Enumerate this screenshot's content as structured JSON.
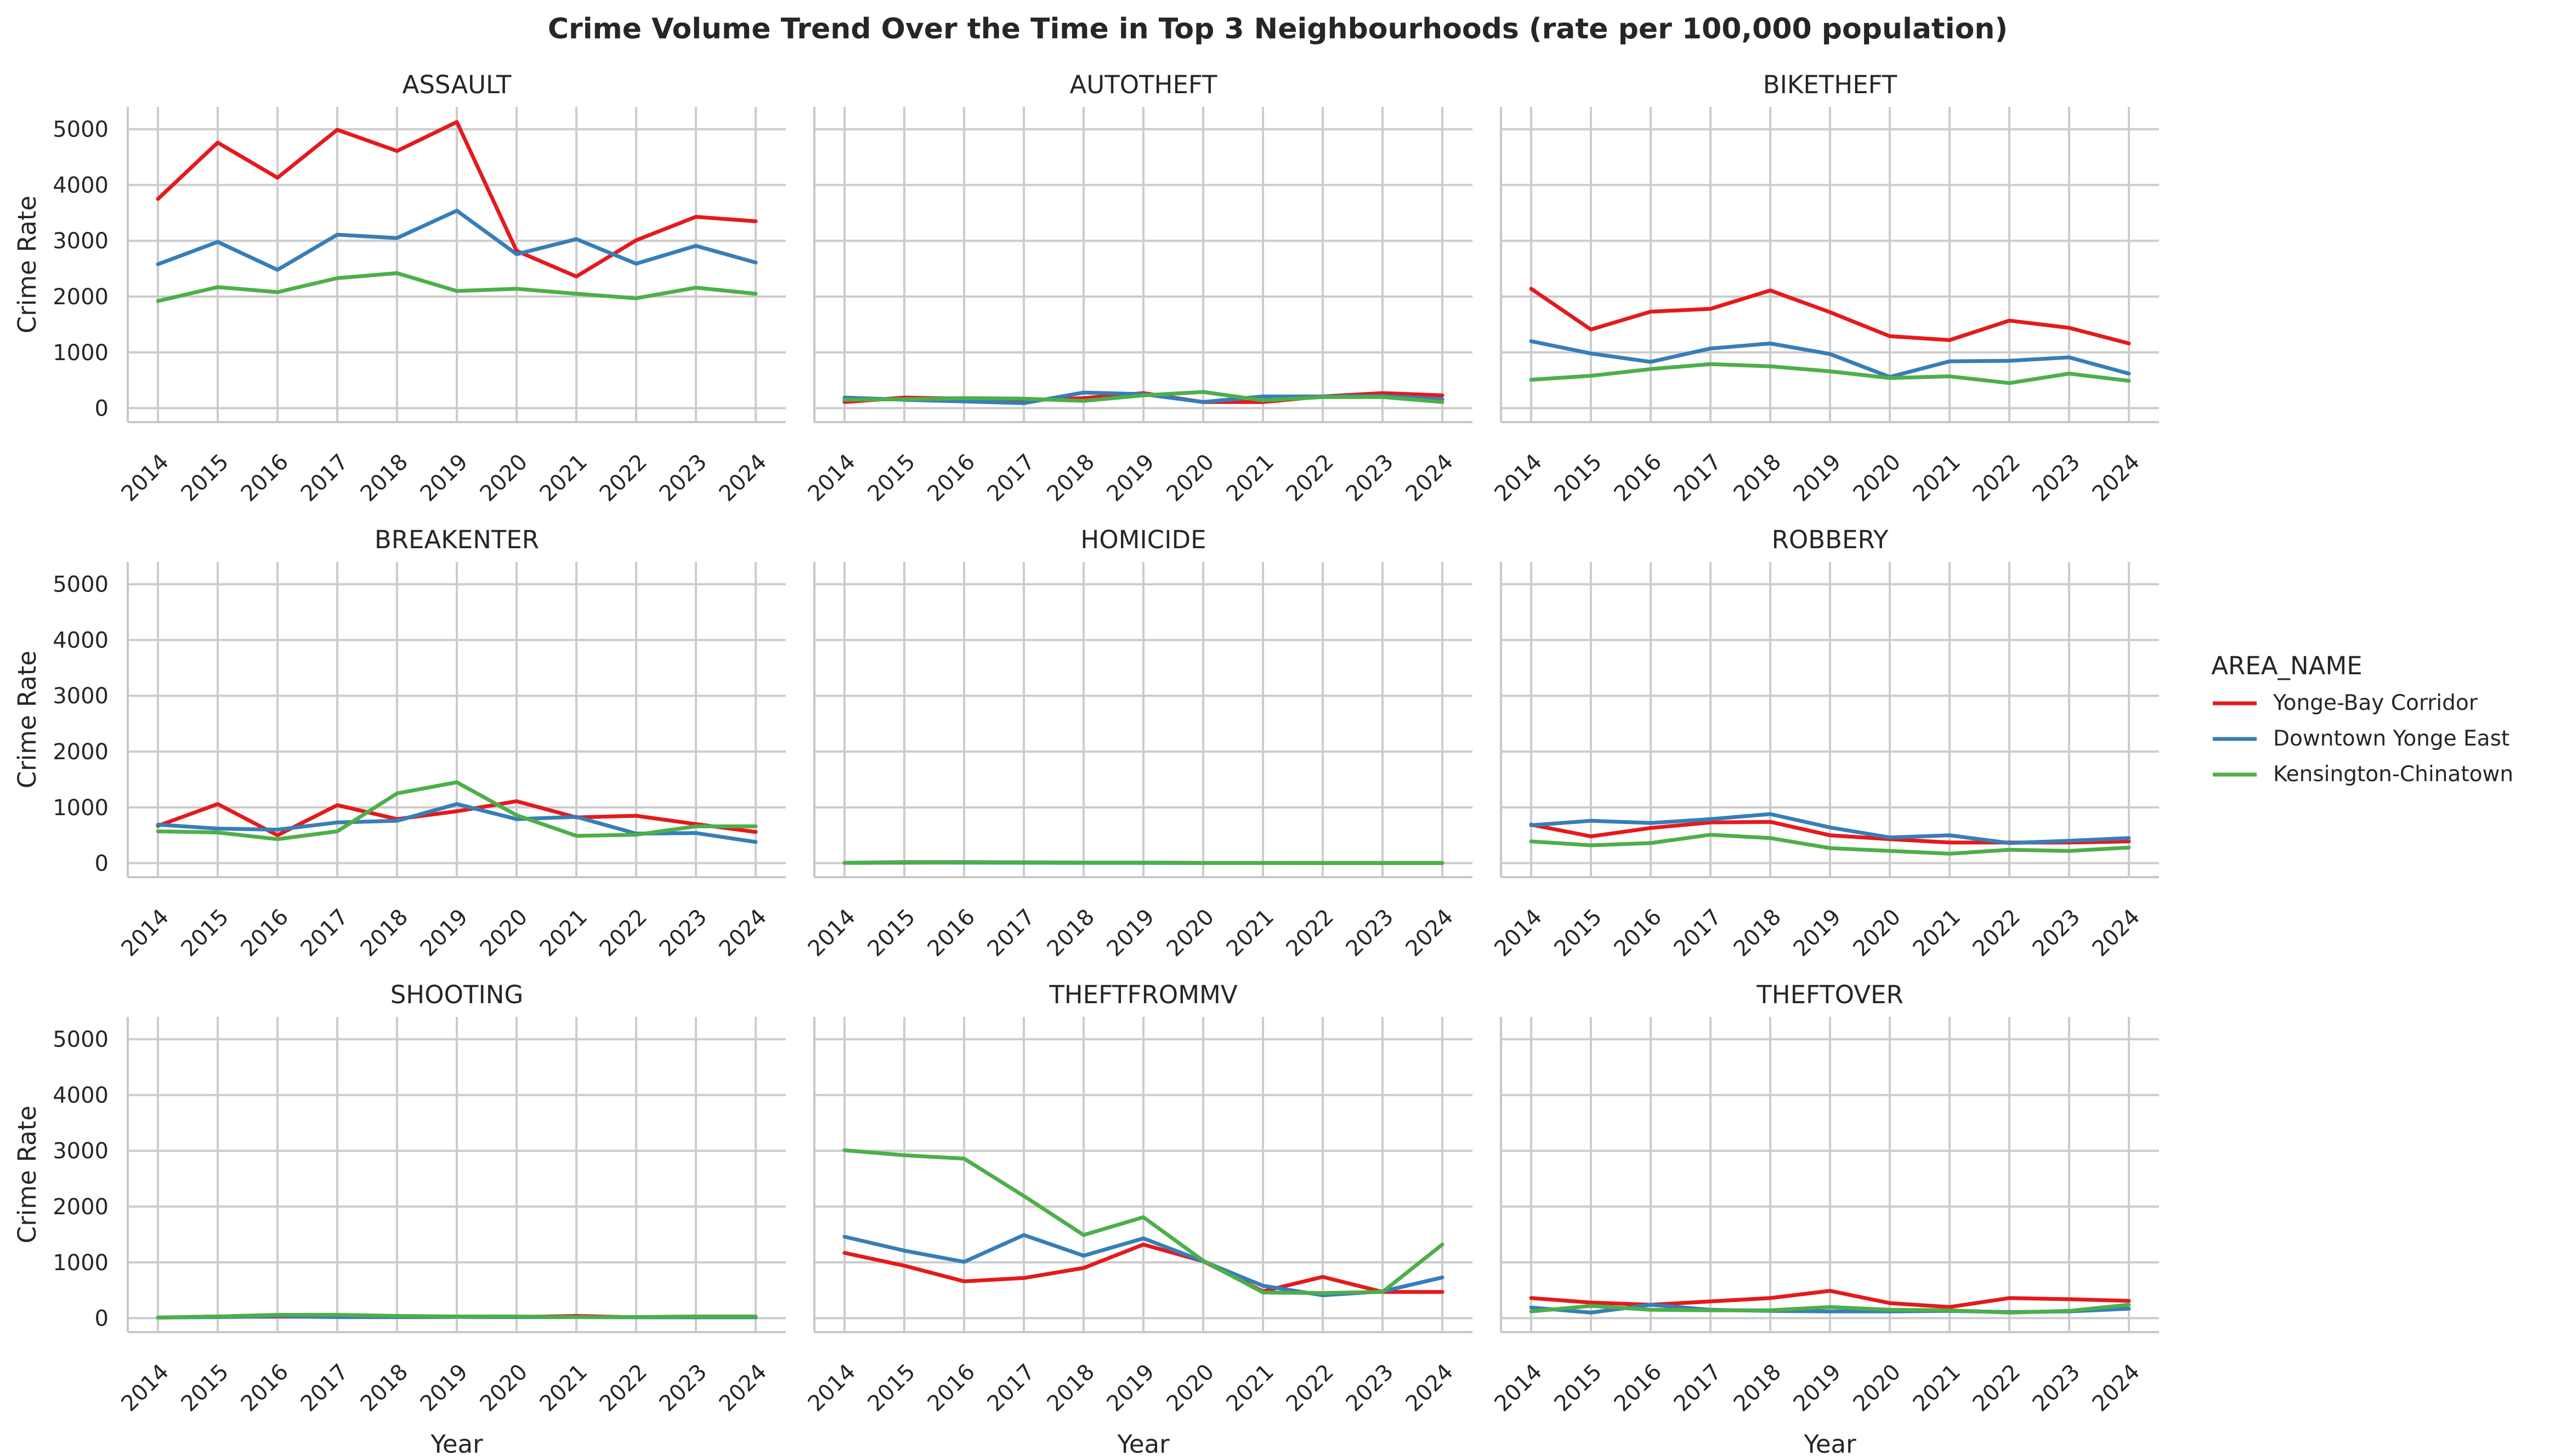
{
  "chart_data": {
    "type": "line",
    "title": "Crime Volume Trend Over the Time in Top 3 Neighbourhoods (rate per 100,000 population)",
    "xlabel": "Year",
    "ylabel": "Crime Rate",
    "ylim": [
      -250,
      5400
    ],
    "yticks": [
      0,
      1000,
      2000,
      3000,
      4000,
      5000
    ],
    "x": [
      2014,
      2015,
      2016,
      2017,
      2018,
      2019,
      2020,
      2021,
      2022,
      2023,
      2024
    ],
    "grid": true,
    "legend": {
      "title": "AREA_NAME",
      "placement": "right",
      "entries": [
        "Yonge-Bay Corridor",
        "Downtown Yonge East",
        "Kensington-Chinatown"
      ]
    },
    "colors": {
      "Yonge-Bay Corridor": "#e41a1c",
      "Downtown Yonge East": "#377eb8",
      "Kensington-Chinatown": "#4daf4a"
    },
    "panels": [
      {
        "title": "ASSAULT",
        "series": [
          {
            "name": "Yonge-Bay Corridor",
            "values": [
              3750,
              4760,
              4130,
              4990,
              4610,
              5130,
              2820,
              2360,
              3010,
              3430,
              3350
            ]
          },
          {
            "name": "Downtown Yonge East",
            "values": [
              2580,
              2980,
              2480,
              3110,
              3050,
              3540,
              2760,
              3030,
              2590,
              2910,
              2610
            ]
          },
          {
            "name": "Kensington-Chinatown",
            "values": [
              1920,
              2170,
              2080,
              2330,
              2420,
              2100,
              2140,
              2050,
              1970,
              2160,
              2050
            ]
          }
        ]
      },
      {
        "title": "AUTOTHEFT",
        "series": [
          {
            "name": "Yonge-Bay Corridor",
            "values": [
              110,
              190,
              170,
              140,
              180,
              270,
              110,
              110,
              210,
              270,
              230
            ]
          },
          {
            "name": "Downtown Yonge East",
            "values": [
              190,
              150,
              120,
              90,
              280,
              250,
              110,
              210,
              210,
              220,
              160
            ]
          },
          {
            "name": "Kensington-Chinatown",
            "values": [
              150,
              160,
              180,
              170,
              130,
              230,
              290,
              140,
              200,
              200,
              110
            ]
          }
        ]
      },
      {
        "title": "BIKETHEFT",
        "series": [
          {
            "name": "Yonge-Bay Corridor",
            "values": [
              2140,
              1410,
              1730,
              1780,
              2110,
              1720,
              1290,
              1220,
              1570,
              1440,
              1160
            ]
          },
          {
            "name": "Downtown Yonge East",
            "values": [
              1200,
              980,
              830,
              1070,
              1160,
              970,
              560,
              840,
              850,
              910,
              620
            ]
          },
          {
            "name": "Kensington-Chinatown",
            "values": [
              510,
              580,
              700,
              790,
              750,
              660,
              540,
              570,
              450,
              620,
              490
            ]
          }
        ]
      },
      {
        "title": "BREAKENTER",
        "series": [
          {
            "name": "Yonge-Bay Corridor",
            "values": [
              670,
              1060,
              500,
              1040,
              790,
              930,
              1110,
              820,
              850,
              700,
              560
            ]
          },
          {
            "name": "Downtown Yonge East",
            "values": [
              690,
              620,
              600,
              730,
              760,
              1060,
              790,
              830,
              530,
              540,
              380
            ]
          },
          {
            "name": "Kensington-Chinatown",
            "values": [
              570,
              550,
              430,
              570,
              1250,
              1450,
              860,
              490,
              510,
              660,
              660
            ]
          }
        ]
      },
      {
        "title": "HOMICIDE",
        "series": [
          {
            "name": "Yonge-Bay Corridor",
            "values": [
              5,
              10,
              15,
              12,
              8,
              8,
              5,
              5,
              3,
              3,
              3
            ]
          },
          {
            "name": "Downtown Yonge East",
            "values": [
              5,
              15,
              10,
              8,
              5,
              5,
              3,
              3,
              3,
              3,
              3
            ]
          },
          {
            "name": "Kensington-Chinatown",
            "values": [
              5,
              20,
              20,
              15,
              10,
              10,
              5,
              5,
              5,
              5,
              5
            ]
          }
        ]
      },
      {
        "title": "ROBBERY",
        "series": [
          {
            "name": "Yonge-Bay Corridor",
            "values": [
              690,
              480,
              630,
              730,
              740,
              500,
              430,
              370,
              370,
              370,
              390
            ]
          },
          {
            "name": "Downtown Yonge East",
            "values": [
              680,
              760,
              720,
              790,
              880,
              640,
              460,
              500,
              360,
              400,
              450
            ]
          },
          {
            "name": "Kensington-Chinatown",
            "values": [
              390,
              320,
              360,
              510,
              450,
              270,
              220,
              170,
              240,
              220,
              280
            ]
          }
        ]
      },
      {
        "title": "SHOOTING",
        "series": [
          {
            "name": "Yonge-Bay Corridor",
            "values": [
              10,
              30,
              30,
              30,
              20,
              25,
              20,
              40,
              15,
              20,
              15
            ]
          },
          {
            "name": "Downtown Yonge East",
            "values": [
              10,
              20,
              40,
              20,
              20,
              25,
              20,
              20,
              15,
              15,
              15
            ]
          },
          {
            "name": "Kensington-Chinatown",
            "values": [
              10,
              30,
              60,
              60,
              40,
              30,
              30,
              20,
              20,
              30,
              30
            ]
          }
        ]
      },
      {
        "title": "THEFTFROMMV",
        "series": [
          {
            "name": "Yonge-Bay Corridor",
            "values": [
              1170,
              940,
              660,
              720,
              900,
              1320,
              1020,
              480,
              740,
              470,
              470
            ]
          },
          {
            "name": "Downtown Yonge East",
            "values": [
              1460,
              1210,
              1010,
              1490,
              1120,
              1430,
              1020,
              580,
              410,
              480,
              730
            ]
          },
          {
            "name": "Kensington-Chinatown",
            "values": [
              3010,
              2920,
              2860,
              2190,
              1490,
              1810,
              1030,
              460,
              450,
              470,
              1320
            ]
          }
        ]
      },
      {
        "title": "THEFTOVER",
        "series": [
          {
            "name": "Yonge-Bay Corridor",
            "values": [
              360,
              280,
              240,
              300,
              360,
              490,
              270,
              200,
              360,
              340,
              310
            ]
          },
          {
            "name": "Downtown Yonge East",
            "values": [
              190,
              100,
              240,
              150,
              130,
              120,
              120,
              130,
              110,
              120,
              170
            ]
          },
          {
            "name": "Kensington-Chinatown",
            "values": [
              120,
              220,
              150,
              140,
              140,
              200,
              150,
              140,
              100,
              130,
              240
            ]
          }
        ]
      }
    ]
  }
}
